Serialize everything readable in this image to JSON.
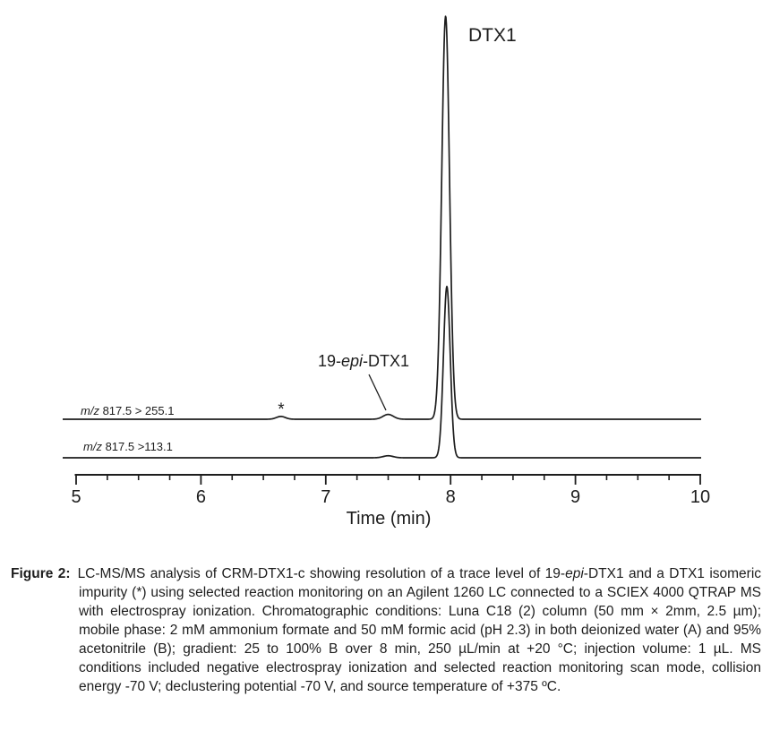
{
  "colors": {
    "ink": "#1d1d1d",
    "background": "#ffffff"
  },
  "chart_data": {
    "type": "line",
    "title": "",
    "xlabel": "Time (min)",
    "ylabel": "",
    "x_range": [
      5,
      10
    ],
    "x_major_ticks": [
      5,
      6,
      7,
      8,
      9,
      10
    ],
    "x_minor_tick_interval": 0.25,
    "grid": false,
    "legend": false,
    "y_axis_shown": false,
    "traces": [
      {
        "name": "m/z 817.5 > 255.1",
        "label_segments": [
          {
            "text": "m/z",
            "italic": true
          },
          {
            "text": " 817.5 > 255.1"
          }
        ],
        "peaks": [
          {
            "time": 6.64,
            "rel_intensity": 0.007,
            "sigma_min": 0.036,
            "annotation": "*"
          },
          {
            "time": 7.5,
            "rel_intensity": 0.012,
            "sigma_min": 0.042,
            "annotation": "19-epi-DTX1"
          },
          {
            "time": 7.96,
            "rel_intensity": 1.0,
            "sigma_min": 0.031,
            "annotation": "DTX1"
          }
        ]
      },
      {
        "name": "m/z 817.5 >113.1",
        "label_segments": [
          {
            "text": "m/z",
            "italic": true
          },
          {
            "text": " 817.5 >113.1"
          }
        ],
        "peaks": [
          {
            "time": 7.5,
            "rel_intensity": 0.005,
            "sigma_min": 0.04
          },
          {
            "time": 7.97,
            "rel_intensity": 0.425,
            "sigma_min": 0.027
          }
        ]
      }
    ],
    "annotations": {
      "dtx1": "DTX1",
      "asterisk": "*",
      "epi_segments": [
        {
          "text": "19-"
        },
        {
          "text": "epi",
          "italic": true
        },
        {
          "text": "-DTX1"
        }
      ]
    }
  },
  "caption": {
    "label": "Figure 2:",
    "segments": [
      {
        "text": "LC-MS/MS analysis of CRM-DTX1-c showing resolution of a trace level of 19-"
      },
      {
        "text": "epi",
        "italic": true
      },
      {
        "text": "-DTX1 and a DTX1 isomeric impurity (*) using selected reaction monitoring on an Agilent 1260 LC connected to a SCIEX 4000 QTRAP MS with electrospray ionization. Chromatographic conditions: Luna C18 (2) column (50 mm × 2mm, 2.5 µm); mobile phase: 2 mM ammonium formate and 50 mM formic acid (pH 2.3) in both deionized water (A) and 95% acetonitrile (B); gradient: 25 to 100% B over 8 min, 250 µL/min at +20 °C; injection volume: 1 µL. MS conditions included negative electrospray ionization and selected reaction monitoring scan mode, collision energy -70 V; declustering potential -70 V, and source temperature of +375 ºC."
      }
    ]
  }
}
